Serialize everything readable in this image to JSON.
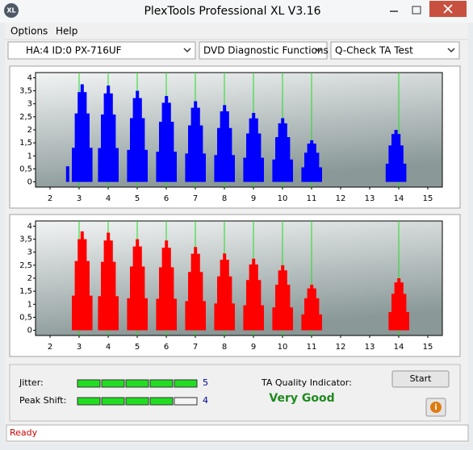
{
  "window": {
    "title": "PlexTools Professional XL V3.16",
    "icon": "XL"
  },
  "menu": [
    "Options",
    "Help"
  ],
  "toolbar": [
    "HA:4 ID:0  PX-716UF",
    "DVD Diagnostic Functions",
    "Q-Check TA Test"
  ],
  "charts": [
    {
      "type": "bar",
      "color": "#0000ff",
      "marker_color": "#22dd22",
      "xlim": [
        1.5,
        15.5
      ],
      "ylim": [
        -0.2,
        4.2
      ],
      "xticks": [
        2,
        3,
        4,
        5,
        6,
        7,
        8,
        9,
        10,
        11,
        12,
        13,
        14,
        15
      ],
      "yticks": [
        0,
        {
          "value": 0.5,
          "label": "0,5"
        },
        1,
        {
          "value": 1.5,
          "label": "1,5"
        },
        2,
        {
          "value": 2.5,
          "label": "2,5"
        },
        3,
        {
          "value": 3.5,
          "label": "3,5"
        },
        4
      ],
      "marker_lines": [
        3,
        4,
        5,
        6,
        7,
        8,
        9,
        10,
        11,
        14
      ],
      "x": [
        2.6,
        2.8,
        2.9,
        3.0,
        3.1,
        3.2,
        3.3,
        3.4,
        3.7,
        3.8,
        3.9,
        4.0,
        4.1,
        4.2,
        4.3,
        4.7,
        4.8,
        4.9,
        5.0,
        5.1,
        5.2,
        5.3,
        5.7,
        5.8,
        5.9,
        6.0,
        6.1,
        6.2,
        6.3,
        6.7,
        6.8,
        6.9,
        7.0,
        7.1,
        7.2,
        7.3,
        7.7,
        7.8,
        7.9,
        8.0,
        8.1,
        8.2,
        8.3,
        8.7,
        8.8,
        8.9,
        9.0,
        9.1,
        9.2,
        9.3,
        9.7,
        9.8,
        9.9,
        10.0,
        10.1,
        10.2,
        10.3,
        10.7,
        10.8,
        10.9,
        11.0,
        11.1,
        11.2,
        11.3,
        13.6,
        13.7,
        13.8,
        13.9,
        14.0,
        14.1,
        14.2
      ],
      "values": [
        0.6,
        1.31,
        2.63,
        3.45,
        3.75,
        3.45,
        2.63,
        1.31,
        1.3,
        2.59,
        3.4,
        3.7,
        3.4,
        2.59,
        1.3,
        1.23,
        2.45,
        3.22,
        3.5,
        3.22,
        2.45,
        1.23,
        1.16,
        2.31,
        3.04,
        3.3,
        3.04,
        2.31,
        1.16,
        1.09,
        2.17,
        2.85,
        3.1,
        2.85,
        2.17,
        1.09,
        1.03,
        2.07,
        2.71,
        2.95,
        2.71,
        2.07,
        1.03,
        0.93,
        1.86,
        2.44,
        2.65,
        2.44,
        1.86,
        0.93,
        0.86,
        1.72,
        2.25,
        2.45,
        2.25,
        1.72,
        0.86,
        0.56,
        1.12,
        1.47,
        1.6,
        1.47,
        1.12,
        0.56,
        0.7,
        1.4,
        1.84,
        2.0,
        1.84,
        1.4,
        0.7
      ]
    },
    {
      "type": "bar",
      "color": "#ff0000",
      "marker_color": "#22dd22",
      "xlim": [
        1.5,
        15.5
      ],
      "ylim": [
        -0.2,
        4.2
      ],
      "xticks": [
        2,
        3,
        4,
        5,
        6,
        7,
        8,
        9,
        10,
        11,
        12,
        13,
        14,
        15
      ],
      "yticks": [
        0,
        {
          "value": 0.5,
          "label": "0,5"
        },
        1,
        {
          "value": 1.5,
          "label": "1,5"
        },
        2,
        {
          "value": 2.5,
          "label": "2,5"
        },
        3,
        {
          "value": 3.5,
          "label": "3,5"
        },
        4
      ],
      "marker_lines": [
        3,
        4,
        5,
        6,
        7,
        8,
        9,
        10,
        11,
        14
      ],
      "x": [
        2.8,
        2.9,
        3.0,
        3.1,
        3.2,
        3.3,
        3.4,
        3.7,
        3.8,
        3.9,
        4.0,
        4.1,
        4.2,
        4.3,
        4.7,
        4.8,
        4.9,
        5.0,
        5.1,
        5.2,
        5.3,
        5.7,
        5.8,
        5.9,
        6.0,
        6.1,
        6.2,
        6.3,
        6.7,
        6.8,
        6.9,
        7.0,
        7.1,
        7.2,
        7.3,
        7.7,
        7.8,
        7.9,
        8.0,
        8.1,
        8.2,
        8.3,
        8.7,
        8.8,
        8.9,
        9.0,
        9.1,
        9.2,
        9.3,
        9.7,
        9.8,
        9.9,
        10.0,
        10.1,
        10.2,
        10.3,
        10.7,
        10.8,
        10.9,
        11.0,
        11.1,
        11.2,
        11.3,
        13.7,
        13.8,
        13.9,
        14.0,
        14.1,
        14.2,
        14.3
      ],
      "values": [
        1.33,
        2.66,
        3.5,
        3.8,
        3.5,
        2.66,
        1.33,
        1.31,
        2.63,
        3.45,
        3.75,
        3.45,
        2.63,
        1.31,
        1.23,
        2.45,
        3.22,
        3.5,
        3.22,
        2.45,
        1.23,
        1.21,
        2.42,
        3.17,
        3.45,
        3.17,
        2.42,
        1.21,
        1.12,
        2.24,
        2.94,
        3.2,
        2.94,
        2.24,
        1.12,
        1.03,
        2.07,
        2.71,
        2.95,
        2.71,
        2.07,
        1.03,
        0.96,
        1.93,
        2.53,
        2.75,
        2.53,
        1.93,
        0.96,
        0.88,
        1.75,
        2.3,
        2.5,
        2.3,
        1.75,
        0.88,
        0.61,
        1.23,
        1.61,
        1.75,
        1.61,
        1.23,
        0.61,
        0.7,
        1.4,
        1.84,
        2.0,
        1.84,
        1.4,
        0.7
      ]
    }
  ],
  "meters": [
    {
      "label": "Jitter:",
      "value": 5
    },
    {
      "label": "Peak Shift:",
      "value": 4
    }
  ],
  "quality": {
    "label": "TA Quality Indicator:",
    "result": "Very Good"
  },
  "start_button": "Start",
  "status": "Ready"
}
